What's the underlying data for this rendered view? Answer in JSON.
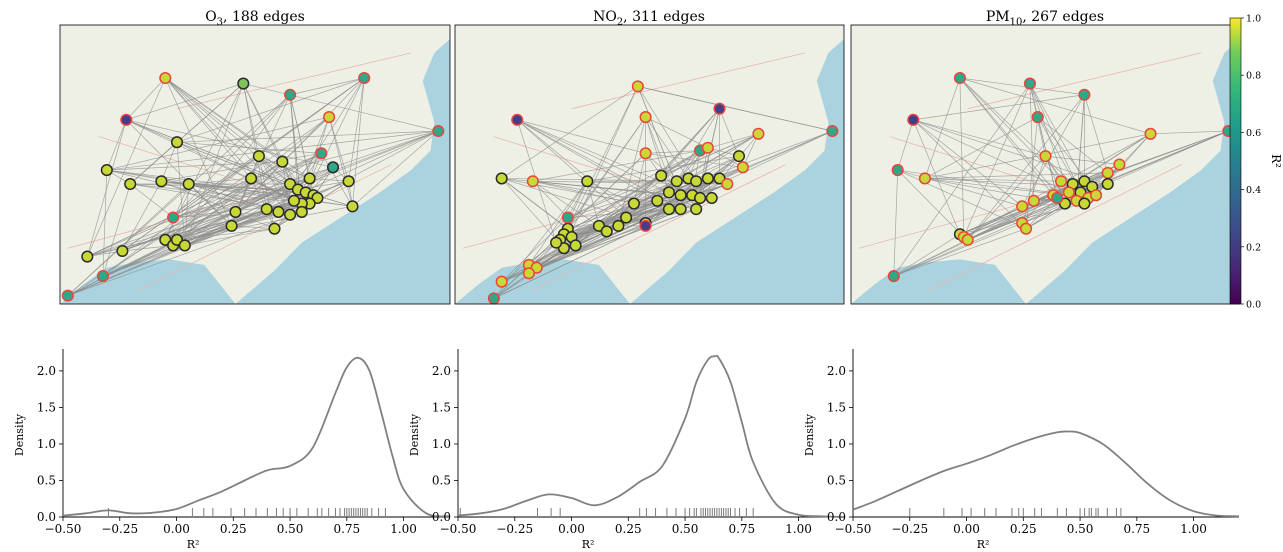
{
  "colorbar": {
    "label": "R²",
    "range": [
      0.0,
      1.0
    ],
    "ticks": [
      "0.0",
      "0.2",
      "0.4",
      "0.6",
      "0.8",
      "1.0"
    ],
    "colormap": "viridis"
  },
  "maps": [
    {
      "title_main": "O",
      "title_sub": "3",
      "title_rest": ", 188 edges"
    },
    {
      "title_main": "NO",
      "title_sub": "2",
      "title_rest": ", 311 edges"
    },
    {
      "title_main": "PM",
      "title_sub": "10",
      "title_rest": ", 267 edges"
    }
  ],
  "legend_colors": {
    "map_land": "#eef0e6",
    "map_sea": "#aad3df",
    "edge": "#8c8c8c",
    "node_outline_positive": "#2b2b2b",
    "node_outline_negative": "#e8453c",
    "density_line": "#808080"
  },
  "chart_data": [
    {
      "type": "line",
      "title": "",
      "xlabel": "R²",
      "ylabel": "Density",
      "xlim": [
        -0.5,
        1.2
      ],
      "ylim": [
        0,
        2.3
      ],
      "xticks": [
        "−0.50",
        "−0.25",
        "0.00",
        "0.25",
        "0.50",
        "0.75",
        "1.00"
      ],
      "yticks": [
        "0.0",
        "0.5",
        "1.0",
        "1.5",
        "2.0"
      ],
      "x": [
        -0.5,
        -0.4,
        -0.3,
        -0.2,
        -0.1,
        0.0,
        0.1,
        0.2,
        0.3,
        0.4,
        0.5,
        0.6,
        0.7,
        0.75,
        0.8,
        0.85,
        0.9,
        0.95,
        1.0,
        1.1,
        1.2
      ],
      "y": [
        0.02,
        0.05,
        0.09,
        0.05,
        0.06,
        0.11,
        0.23,
        0.35,
        0.5,
        0.64,
        0.7,
        0.95,
        1.7,
        2.05,
        2.18,
        2.0,
        1.45,
        0.85,
        0.38,
        0.05,
        0.01
      ],
      "rug": [
        -0.3,
        0.07,
        0.12,
        0.16,
        0.24,
        0.3,
        0.35,
        0.4,
        0.44,
        0.47,
        0.5,
        0.53,
        0.58,
        0.62,
        0.64,
        0.67,
        0.7,
        0.72,
        0.74,
        0.75,
        0.76,
        0.77,
        0.78,
        0.79,
        0.8,
        0.81,
        0.82,
        0.83,
        0.84,
        0.86,
        0.89,
        0.92
      ]
    },
    {
      "type": "line",
      "title": "",
      "xlabel": "R²",
      "ylabel": "Density",
      "xlim": [
        -0.5,
        1.2
      ],
      "ylim": [
        0,
        2.3
      ],
      "xticks": [
        "−0.50",
        "−0.25",
        "0.00",
        "0.25",
        "0.50",
        "0.75",
        "1.00"
      ],
      "yticks": [
        "0.0",
        "0.5",
        "1.0",
        "1.5",
        "2.0"
      ],
      "x": [
        -0.5,
        -0.4,
        -0.3,
        -0.2,
        -0.1,
        0.0,
        0.1,
        0.2,
        0.3,
        0.4,
        0.5,
        0.55,
        0.6,
        0.63,
        0.65,
        0.7,
        0.75,
        0.8,
        0.9,
        1.0,
        1.1,
        1.2
      ],
      "y": [
        0.02,
        0.05,
        0.11,
        0.22,
        0.31,
        0.26,
        0.16,
        0.27,
        0.48,
        0.7,
        1.35,
        1.85,
        2.15,
        2.2,
        2.17,
        1.85,
        1.3,
        0.75,
        0.18,
        0.03,
        0.01,
        0.0
      ],
      "rug": [
        -0.49,
        -0.15,
        -0.09,
        -0.05,
        0.3,
        0.33,
        0.37,
        0.42,
        0.46,
        0.5,
        0.52,
        0.54,
        0.55,
        0.57,
        0.58,
        0.59,
        0.6,
        0.61,
        0.62,
        0.63,
        0.64,
        0.65,
        0.66,
        0.67,
        0.68,
        0.69,
        0.7,
        0.72,
        0.74,
        0.77,
        0.8
      ]
    },
    {
      "type": "line",
      "title": "",
      "xlabel": "R²",
      "ylabel": "Density",
      "xlim": [
        -0.5,
        1.2
      ],
      "ylim": [
        0,
        2.3
      ],
      "xticks": [
        "−0.50",
        "−0.25",
        "0.00",
        "0.25",
        "0.50",
        "0.75",
        "1.00"
      ],
      "yticks": [
        "0.0",
        "0.5",
        "1.0",
        "1.5",
        "2.0"
      ],
      "x": [
        -0.5,
        -0.4,
        -0.3,
        -0.2,
        -0.1,
        0.0,
        0.1,
        0.2,
        0.3,
        0.4,
        0.45,
        0.5,
        0.6,
        0.7,
        0.8,
        0.9,
        1.0,
        1.1,
        1.2
      ],
      "y": [
        0.1,
        0.22,
        0.36,
        0.5,
        0.63,
        0.73,
        0.84,
        0.97,
        1.08,
        1.16,
        1.17,
        1.15,
        1.0,
        0.74,
        0.45,
        0.22,
        0.08,
        0.02,
        0.01
      ],
      "rug": [
        -0.25,
        -0.1,
        -0.02,
        0.02,
        0.08,
        0.13,
        0.2,
        0.23,
        0.25,
        0.3,
        0.33,
        0.4,
        0.44,
        0.5,
        0.52,
        0.54,
        0.55,
        0.57,
        0.58,
        0.62,
        0.66,
        0.68
      ]
    }
  ]
}
